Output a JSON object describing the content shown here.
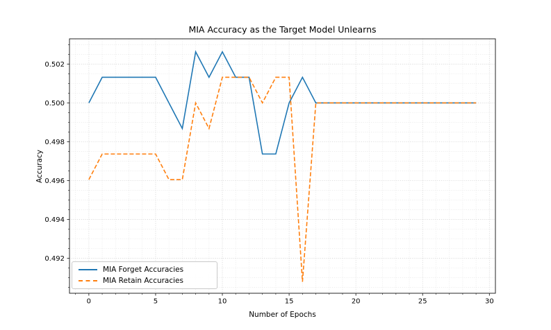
{
  "chart_data": {
    "type": "line",
    "title": "MIA Accuracy as the Target Model Unlearns",
    "xlabel": "Number of Epochs",
    "ylabel": "Accuracy",
    "x": [
      0,
      1,
      2,
      3,
      4,
      5,
      6,
      7,
      8,
      9,
      10,
      11,
      12,
      13,
      14,
      15,
      16,
      17,
      18,
      19,
      20,
      21,
      22,
      23,
      24,
      25,
      26,
      27,
      28,
      29
    ],
    "series": [
      {
        "name": "MIA Forget Accuracies",
        "color": "#1f77b4",
        "line_style": "solid",
        "values": [
          0.5,
          0.50132,
          0.50132,
          0.50132,
          0.50132,
          0.50132,
          0.5,
          0.49868,
          0.50263,
          0.50132,
          0.50263,
          0.50132,
          0.50132,
          0.49737,
          0.49737,
          0.5,
          0.50132,
          0.5,
          0.5,
          0.5,
          0.5,
          0.5,
          0.5,
          0.5,
          0.5,
          0.5,
          0.5,
          0.5,
          0.5,
          0.5
        ]
      },
      {
        "name": "MIA Retain Accuracies",
        "color": "#ff7f0e",
        "line_style": "dashed",
        "values": [
          0.49605,
          0.49737,
          0.49737,
          0.49737,
          0.49737,
          0.49737,
          0.49605,
          0.49605,
          0.5,
          0.49868,
          0.50132,
          0.50132,
          0.50132,
          0.5,
          0.50132,
          0.50132,
          0.49079,
          0.5,
          0.5,
          0.5,
          0.5,
          0.5,
          0.5,
          0.5,
          0.5,
          0.5,
          0.5,
          0.5,
          0.5,
          0.5
        ]
      }
    ],
    "xlim": [
      -1.45,
      30.45
    ],
    "ylim": [
      0.4902,
      0.5033
    ],
    "x_ticks": [
      0,
      5,
      10,
      15,
      20,
      25,
      30
    ],
    "x_tick_labels": [
      "0",
      "5",
      "10",
      "15",
      "20",
      "25",
      "30"
    ],
    "y_ticks": [
      0.492,
      0.494,
      0.496,
      0.498,
      0.5,
      0.502
    ],
    "y_tick_labels": [
      "0.492",
      "0.494",
      "0.496",
      "0.498",
      "0.500",
      "0.502"
    ],
    "x_minor_step": 1,
    "y_minor_step": 0.0005,
    "grid": "major+minor dotted",
    "legend_position": "lower left",
    "grid_major_color": "#cfcfcf",
    "grid_minor_color": "#e4e4e4",
    "spine_color": "#262626"
  }
}
